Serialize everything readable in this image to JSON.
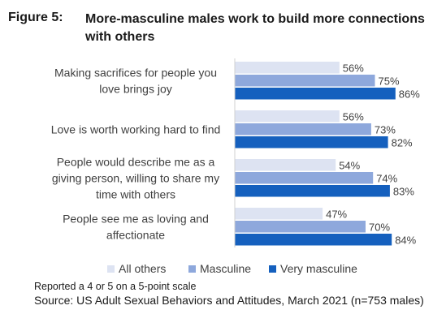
{
  "figure": {
    "number": "Figure 5:",
    "title": "More-masculine males work to build more connections with others"
  },
  "chart_data": {
    "type": "bar",
    "orientation": "horizontal",
    "categories": [
      [
        "Making sacrifices for people you",
        "love brings joy"
      ],
      [
        "Love is worth working hard to find"
      ],
      [
        "People would describe me as a",
        "giving person, willing to share my",
        "time with others"
      ],
      [
        "People see me as loving and",
        "affectionate"
      ]
    ],
    "series": [
      {
        "name": "All others",
        "color": "#dde3f2",
        "values": [
          56,
          56,
          54,
          47
        ]
      },
      {
        "name": "Masculine",
        "color": "#8ea8dc",
        "values": [
          75,
          73,
          74,
          70
        ]
      },
      {
        "name": "Very masculine",
        "color": "#1560be",
        "values": [
          86,
          82,
          83,
          84
        ]
      }
    ],
    "value_suffix": "%",
    "xlim": [
      0,
      100
    ],
    "grid": false,
    "axis_color": "#d0d0d0",
    "legend_position": "bottom"
  },
  "notes": {
    "scale": "Reported a 4 or 5 on a 5-point scale",
    "source": "Source: US Adult Sexual Behaviors and Attitudes, March 2021 (n=753 males)"
  }
}
